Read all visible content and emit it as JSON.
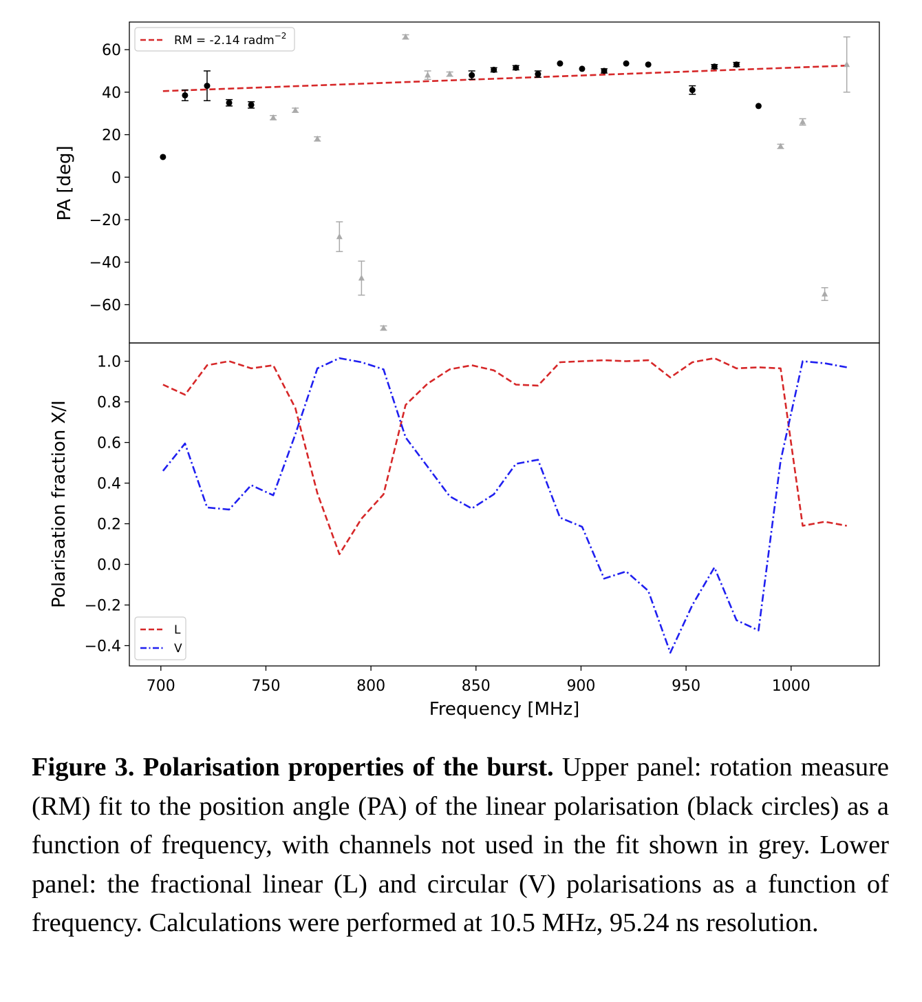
{
  "chart_data": [
    {
      "type": "scatter",
      "panel": "upper",
      "ylabel": "PA [deg]",
      "xlim": [
        685,
        1042
      ],
      "ylim": [
        -78,
        73
      ],
      "yticks": [
        60,
        40,
        20,
        0,
        -20,
        -40,
        -60
      ],
      "legend": {
        "placement": "top-left",
        "entries": [
          {
            "label": "RM = -2.14 radm",
            "sup": "−2",
            "color": "#d62728",
            "style": "dashed"
          }
        ]
      },
      "series": [
        {
          "role": "fitted",
          "color": "#000000",
          "marker": "circle",
          "points": [
            {
              "x": 701,
              "y": 9.5,
              "err": 0.8
            },
            {
              "x": 711.5,
              "y": 38.5,
              "err": 2.5
            },
            {
              "x": 722,
              "y": 43,
              "err": 7
            },
            {
              "x": 732.5,
              "y": 35,
              "err": 1.5
            },
            {
              "x": 743,
              "y": 34,
              "err": 1.5
            },
            {
              "x": 848,
              "y": 48,
              "err": 2
            },
            {
              "x": 858.5,
              "y": 50.5,
              "err": 1
            },
            {
              "x": 869,
              "y": 51.5,
              "err": 1
            },
            {
              "x": 879.5,
              "y": 48.5,
              "err": 1.5
            },
            {
              "x": 890,
              "y": 53.5,
              "err": 0.8
            },
            {
              "x": 900.5,
              "y": 51,
              "err": 0.8
            },
            {
              "x": 911,
              "y": 50,
              "err": 1
            },
            {
              "x": 921.5,
              "y": 53.5,
              "err": 0.8
            },
            {
              "x": 932,
              "y": 53,
              "err": 0.8
            },
            {
              "x": 953,
              "y": 41,
              "err": 2
            },
            {
              "x": 963.5,
              "y": 52,
              "err": 1
            },
            {
              "x": 974,
              "y": 53,
              "err": 1
            },
            {
              "x": 984.5,
              "y": 33.5,
              "err": 0.8
            }
          ]
        },
        {
          "role": "excluded",
          "color": "#aaaaaa",
          "marker": "triangle",
          "points": [
            {
              "x": 753.5,
              "y": 28,
              "err": 1
            },
            {
              "x": 764,
              "y": 31.5,
              "err": 1
            },
            {
              "x": 774.5,
              "y": 18,
              "err": 1
            },
            {
              "x": 785,
              "y": -28,
              "err": 7
            },
            {
              "x": 795.5,
              "y": -47.5,
              "err": 8
            },
            {
              "x": 806,
              "y": -71,
              "err": 1
            },
            {
              "x": 816.5,
              "y": 66,
              "err": 1
            },
            {
              "x": 827,
              "y": 48,
              "err": 2
            },
            {
              "x": 837.5,
              "y": 48.5,
              "err": 1
            },
            {
              "x": 995,
              "y": 14.5,
              "err": 1
            },
            {
              "x": 1005.5,
              "y": 26,
              "err": 1.5
            },
            {
              "x": 1016,
              "y": -55,
              "err": 3
            },
            {
              "x": 1026.5,
              "y": 53,
              "err": 13
            }
          ]
        },
        {
          "name": "RM = -2.14 radm−2",
          "role": "fit",
          "type": "line",
          "color": "#d62728",
          "style": "dashed",
          "points": [
            {
              "x": 701,
              "y": 40.5
            },
            {
              "x": 1026.5,
              "y": 52.5
            }
          ]
        }
      ]
    },
    {
      "type": "line",
      "panel": "lower",
      "xlabel": "Frequency [MHz]",
      "ylabel": "Polarisation fraction X/I",
      "xlim": [
        685,
        1042
      ],
      "ylim": [
        -0.5,
        1.09
      ],
      "xticks": [
        700,
        750,
        800,
        850,
        900,
        950,
        1000
      ],
      "yticks": [
        1.0,
        0.8,
        0.6,
        0.4,
        0.2,
        0.0,
        -0.2,
        -0.4
      ],
      "ytick_labels": [
        "1.0",
        "0.8",
        "0.6",
        "0.4",
        "0.2",
        "0.0",
        "−0.2",
        "−0.4"
      ],
      "legend": {
        "placement": "bottom-left"
      },
      "x": [
        701,
        711.5,
        722,
        732.5,
        743,
        753.5,
        764,
        774.5,
        785,
        795.5,
        806,
        816.5,
        827,
        837.5,
        848,
        858.5,
        869,
        879.5,
        890,
        900.5,
        911,
        921.5,
        932,
        942.5,
        953,
        963.5,
        974,
        984.5,
        995,
        1005.5,
        1016,
        1026.5
      ],
      "series": [
        {
          "name": "L",
          "color": "#d62728",
          "style": "dashed",
          "values": [
            0.885,
            0.835,
            0.98,
            1.0,
            0.965,
            0.98,
            0.77,
            0.35,
            0.05,
            0.225,
            0.345,
            0.785,
            0.89,
            0.96,
            0.98,
            0.955,
            0.885,
            0.88,
            0.995,
            1.0,
            1.005,
            1.0,
            1.005,
            0.92,
            0.995,
            1.015,
            0.965,
            0.97,
            0.965,
            0.19,
            0.21,
            0.19
          ]
        },
        {
          "name": "V",
          "color": "#1f1ff0",
          "style": "dashdot",
          "values": [
            0.46,
            0.595,
            0.28,
            0.27,
            0.39,
            0.34,
            0.64,
            0.965,
            1.015,
            0.995,
            0.96,
            0.625,
            0.48,
            0.335,
            0.275,
            0.345,
            0.495,
            0.515,
            0.23,
            0.185,
            -0.07,
            -0.035,
            -0.13,
            -0.435,
            -0.2,
            -0.015,
            -0.275,
            -0.325,
            0.51,
            1.0,
            0.99,
            0.97
          ]
        }
      ]
    }
  ],
  "caption": {
    "label": "Figure 3. Polarisation properties of the burst.",
    "text": " Upper panel: rotation measure (RM) fit to the position angle (PA) of the linear polarisation (black circles) as a function of frequency, with channels not used in the fit shown in grey. Lower panel: the fractional linear (L) and circular (V) polarisations as a function of frequency. Calculations were performed at 10.5 MHz, 95.24 ns resolution."
  }
}
